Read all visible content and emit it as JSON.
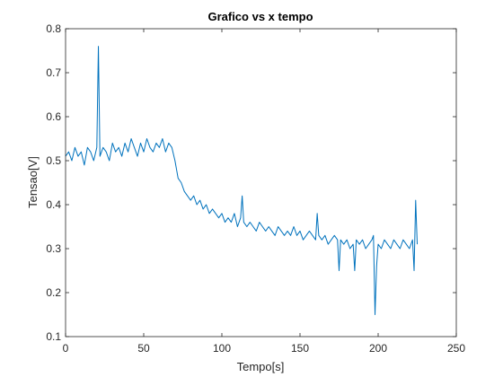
{
  "chart_data": {
    "type": "line",
    "title": "Grafico vs x tempo",
    "xlabel": "Tempo[s]",
    "ylabel": "Tensao[V]",
    "xlim": [
      0,
      250
    ],
    "ylim": [
      0.1,
      0.8
    ],
    "xticks": [
      0,
      50,
      100,
      150,
      200,
      250
    ],
    "yticks": [
      0.1,
      0.2,
      0.3,
      0.4,
      0.5,
      0.6,
      0.7,
      0.8
    ],
    "xtick_labels": [
      "0",
      "50",
      "100",
      "150",
      "200",
      "250"
    ],
    "ytick_labels": [
      "0.1",
      "0.2",
      "0.3",
      "0.4",
      "0.5",
      "0.6",
      "0.7",
      "0.8"
    ],
    "grid": false,
    "legend": "none",
    "line_color": "#0072BD",
    "series": [
      {
        "x": [
          0,
          2,
          4,
          6,
          8,
          10,
          12,
          14,
          16,
          18,
          20,
          21,
          22,
          24,
          26,
          28,
          30,
          32,
          34,
          36,
          38,
          40,
          42,
          44,
          46,
          48,
          50,
          52,
          54,
          56,
          58,
          60,
          62,
          64,
          66,
          68,
          70,
          72,
          74,
          76,
          78,
          80,
          82,
          84,
          86,
          88,
          90,
          92,
          94,
          96,
          98,
          100,
          102,
          104,
          106,
          108,
          110,
          112,
          113,
          114,
          116,
          118,
          120,
          122,
          124,
          126,
          128,
          130,
          132,
          134,
          136,
          138,
          140,
          142,
          144,
          146,
          148,
          150,
          152,
          154,
          156,
          158,
          160,
          161,
          162,
          164,
          166,
          168,
          170,
          172,
          174,
          175,
          176,
          178,
          180,
          182,
          184,
          185,
          186,
          188,
          190,
          192,
          194,
          196,
          197,
          198,
          199,
          200,
          202,
          204,
          206,
          208,
          210,
          212,
          214,
          216,
          218,
          220,
          222,
          223,
          224,
          225
        ],
        "y": [
          0.51,
          0.52,
          0.5,
          0.53,
          0.51,
          0.52,
          0.49,
          0.53,
          0.52,
          0.5,
          0.53,
          0.76,
          0.51,
          0.53,
          0.52,
          0.5,
          0.54,
          0.52,
          0.53,
          0.51,
          0.54,
          0.52,
          0.55,
          0.53,
          0.51,
          0.54,
          0.52,
          0.55,
          0.53,
          0.52,
          0.54,
          0.53,
          0.55,
          0.52,
          0.54,
          0.53,
          0.5,
          0.46,
          0.45,
          0.43,
          0.42,
          0.41,
          0.42,
          0.4,
          0.41,
          0.39,
          0.4,
          0.38,
          0.39,
          0.38,
          0.37,
          0.38,
          0.36,
          0.37,
          0.36,
          0.38,
          0.35,
          0.37,
          0.42,
          0.36,
          0.35,
          0.36,
          0.35,
          0.34,
          0.36,
          0.35,
          0.34,
          0.35,
          0.34,
          0.33,
          0.35,
          0.34,
          0.33,
          0.34,
          0.33,
          0.35,
          0.33,
          0.34,
          0.32,
          0.33,
          0.34,
          0.33,
          0.32,
          0.38,
          0.33,
          0.32,
          0.33,
          0.31,
          0.32,
          0.33,
          0.32,
          0.25,
          0.32,
          0.31,
          0.32,
          0.3,
          0.31,
          0.25,
          0.32,
          0.31,
          0.32,
          0.3,
          0.31,
          0.32,
          0.33,
          0.15,
          0.26,
          0.31,
          0.3,
          0.32,
          0.31,
          0.3,
          0.32,
          0.31,
          0.3,
          0.32,
          0.31,
          0.3,
          0.32,
          0.25,
          0.41,
          0.31
        ]
      }
    ]
  }
}
